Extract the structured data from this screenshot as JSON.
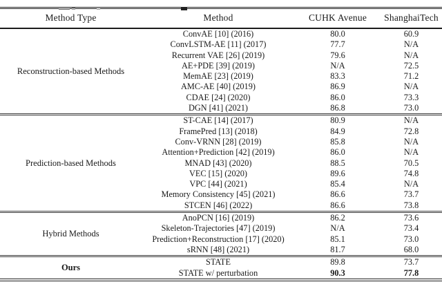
{
  "table": {
    "columns": [
      "Method Type",
      "Method",
      "CUHK Avenue",
      "ShanghaiTech"
    ],
    "sections": [
      {
        "type": "Reconstruction-based Methods",
        "bold_type": false,
        "rows": [
          {
            "method": "ConvAE [10] (2016)",
            "cuhk": "80.0",
            "shanghai": "60.9",
            "bold_scores": false
          },
          {
            "method": "ConvLSTM-AE [11] (2017)",
            "cuhk": "77.7",
            "shanghai": "N/A",
            "bold_scores": false
          },
          {
            "method": "Recurrent VAE [26] (2019)",
            "cuhk": "79.6",
            "shanghai": "N/A",
            "bold_scores": false
          },
          {
            "method": "AE+PDE [39] (2019)",
            "cuhk": "N/A",
            "shanghai": "72.5",
            "bold_scores": false
          },
          {
            "method": "MemAE [23] (2019)",
            "cuhk": "83.3",
            "shanghai": "71.2",
            "bold_scores": false
          },
          {
            "method": "AMC-AE [40] (2019)",
            "cuhk": "86.9",
            "shanghai": "N/A",
            "bold_scores": false
          },
          {
            "method": "CDAE [24] (2020)",
            "cuhk": "86.0",
            "shanghai": "73.3",
            "bold_scores": false
          },
          {
            "method": "DGN [41] (2021)",
            "cuhk": "86.8",
            "shanghai": "73.0",
            "bold_scores": false
          }
        ]
      },
      {
        "type": "Prediction-based Methods",
        "bold_type": false,
        "rows": [
          {
            "method": "ST-CAE [14] (2017)",
            "cuhk": "80.9",
            "shanghai": "N/A",
            "bold_scores": false
          },
          {
            "method": "FramePred [13] (2018)",
            "cuhk": "84.9",
            "shanghai": "72.8",
            "bold_scores": false
          },
          {
            "method": "Conv-VRNN [28] (2019)",
            "cuhk": "85.8",
            "shanghai": "N/A",
            "bold_scores": false
          },
          {
            "method": "Attention+Prediction [42] (2019)",
            "cuhk": "86.0",
            "shanghai": "N/A",
            "bold_scores": false
          },
          {
            "method": "MNAD [43] (2020)",
            "cuhk": "88.5",
            "shanghai": "70.5",
            "bold_scores": false
          },
          {
            "method": "VEC [15] (2020)",
            "cuhk": "89.6",
            "shanghai": "74.8",
            "bold_scores": false
          },
          {
            "method": "VPC [44] (2021)",
            "cuhk": "85.4",
            "shanghai": "N/A",
            "bold_scores": false
          },
          {
            "method": "Memory Consistency [45] (2021)",
            "cuhk": "86.6",
            "shanghai": "73.7",
            "bold_scores": false
          },
          {
            "method": "STCEN [46] (2022)",
            "cuhk": "86.6",
            "shanghai": "73.8",
            "bold_scores": false
          }
        ]
      },
      {
        "type": "Hybrid Methods",
        "bold_type": false,
        "rows": [
          {
            "method": "AnoPCN  [16] (2019)",
            "cuhk": "86.2",
            "shanghai": "73.6",
            "bold_scores": false
          },
          {
            "method": "Skeleton-Trajectories [47] (2019)",
            "cuhk": "N/A",
            "shanghai": "73.4",
            "bold_scores": false
          },
          {
            "method": "Prediction+Reconstruction [17] (2020)",
            "cuhk": "85.1",
            "shanghai": "73.0",
            "bold_scores": false
          },
          {
            "method": "sRNN [48] (2021)",
            "cuhk": "81.7",
            "shanghai": "68.0",
            "bold_scores": false
          }
        ]
      },
      {
        "type": "Ours",
        "bold_type": true,
        "rows": [
          {
            "method": "STATE",
            "cuhk": "89.8",
            "shanghai": "73.7",
            "bold_scores": false
          },
          {
            "method": "STATE w/ perturbation",
            "cuhk": "90.3",
            "shanghai": "77.8",
            "bold_scores": true
          }
        ]
      }
    ]
  }
}
